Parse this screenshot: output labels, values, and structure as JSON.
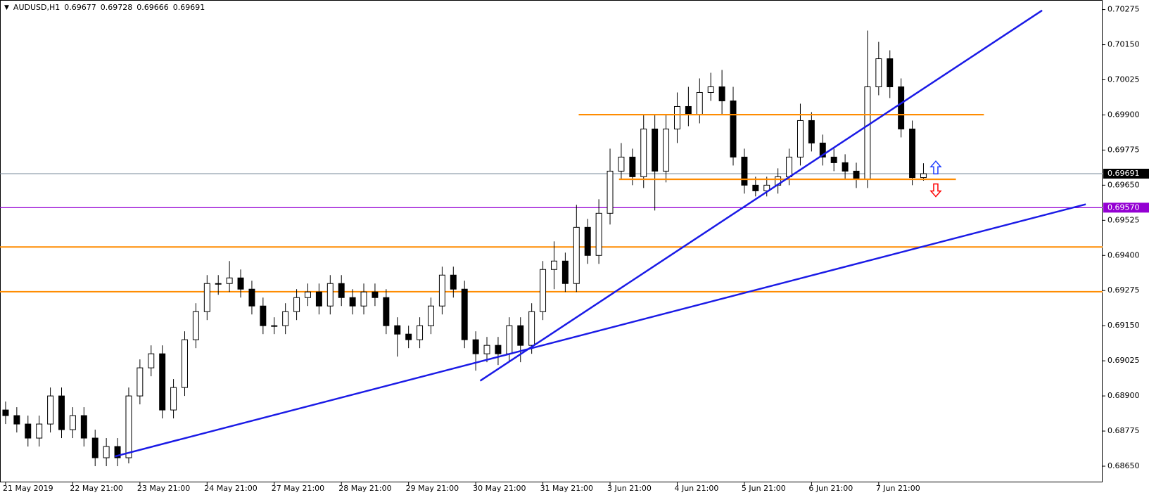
{
  "chart_data": {
    "type": "candlestick",
    "title": "AUDUSD,H1",
    "up_color": "#ffffff",
    "down_color": "#000000",
    "outline_color": "#000000",
    "open": [
      0.6885,
      0.6883,
      0.688,
      0.6875,
      0.688,
      0.689,
      0.6878,
      0.6883,
      0.6875,
      0.6868,
      0.6872,
      0.6868,
      0.689,
      0.69,
      0.6905,
      0.6885,
      0.6893,
      0.691,
      0.692,
      0.693,
      0.693,
      0.6932,
      0.6928,
      0.6922,
      0.6915,
      0.6915,
      0.692,
      0.6925,
      0.6927,
      0.6922,
      0.693,
      0.6925,
      0.6922,
      0.6927,
      0.6925,
      0.6915,
      0.6912,
      0.691,
      0.6915,
      0.6922,
      0.6933,
      0.6928,
      0.691,
      0.6905,
      0.6908,
      0.6905,
      0.6915,
      0.6908,
      0.692,
      0.6935,
      0.6938,
      0.693,
      0.695,
      0.694,
      0.6955,
      0.697,
      0.6975,
      0.6968,
      0.6985,
      0.697,
      0.6985,
      0.6993,
      0.699,
      0.6998,
      0.7,
      0.6995,
      0.6975,
      0.6965,
      0.6963,
      0.6965,
      0.6968,
      0.6975,
      0.6988,
      0.698,
      0.6975,
      0.6973,
      0.697,
      0.6967,
      0.7,
      0.701,
      0.7,
      0.6985,
      0.69677
    ],
    "high": [
      0.6888,
      0.6886,
      0.6883,
      0.6883,
      0.6893,
      0.6893,
      0.6886,
      0.6886,
      0.6878,
      0.6875,
      0.6875,
      0.6893,
      0.6903,
      0.6908,
      0.6908,
      0.6896,
      0.6913,
      0.6923,
      0.6933,
      0.6933,
      0.6938,
      0.6935,
      0.6931,
      0.6925,
      0.6918,
      0.6923,
      0.6928,
      0.693,
      0.693,
      0.6933,
      0.6933,
      0.6928,
      0.693,
      0.693,
      0.6928,
      0.6918,
      0.6915,
      0.6918,
      0.6925,
      0.6936,
      0.6936,
      0.6931,
      0.6913,
      0.6911,
      0.6911,
      0.6918,
      0.6918,
      0.6923,
      0.6938,
      0.6945,
      0.6941,
      0.6958,
      0.6953,
      0.696,
      0.6978,
      0.698,
      0.6978,
      0.699,
      0.699,
      0.699,
      0.6998,
      0.7,
      0.7003,
      0.7005,
      0.7006,
      0.7,
      0.6978,
      0.6968,
      0.6968,
      0.6971,
      0.6978,
      0.6994,
      0.6991,
      0.6983,
      0.6978,
      0.6976,
      0.6973,
      0.702,
      0.7016,
      0.7013,
      0.7003,
      0.6988,
      0.69728
    ],
    "low": [
      0.688,
      0.6877,
      0.6872,
      0.6872,
      0.6877,
      0.6875,
      0.6875,
      0.6872,
      0.6865,
      0.6865,
      0.6865,
      0.6866,
      0.6887,
      0.6897,
      0.6882,
      0.6882,
      0.689,
      0.6907,
      0.6917,
      0.6926,
      0.6927,
      0.6925,
      0.6919,
      0.6912,
      0.6912,
      0.6912,
      0.6917,
      0.6922,
      0.6919,
      0.6919,
      0.6922,
      0.6919,
      0.6919,
      0.6922,
      0.6912,
      0.6904,
      0.6907,
      0.6907,
      0.6912,
      0.6919,
      0.6925,
      0.6907,
      0.6899,
      0.6902,
      0.6901,
      0.6902,
      0.6902,
      0.6905,
      0.6917,
      0.6928,
      0.6927,
      0.6927,
      0.6937,
      0.6937,
      0.6951,
      0.6967,
      0.6965,
      0.6964,
      0.6956,
      0.6966,
      0.698,
      0.6986,
      0.6987,
      0.6995,
      0.699,
      0.6972,
      0.6962,
      0.6961,
      0.6961,
      0.6962,
      0.6965,
      0.6972,
      0.6977,
      0.6972,
      0.697,
      0.6967,
      0.6964,
      0.6964,
      0.6997,
      0.6996,
      0.6982,
      0.6965,
      0.69666
    ],
    "close": [
      0.6883,
      0.688,
      0.6875,
      0.688,
      0.689,
      0.6878,
      0.6883,
      0.6875,
      0.6868,
      0.6872,
      0.6868,
      0.689,
      0.69,
      0.6905,
      0.6885,
      0.6893,
      0.691,
      0.692,
      0.693,
      0.693,
      0.6932,
      0.6928,
      0.6922,
      0.6915,
      0.6915,
      0.692,
      0.6925,
      0.6927,
      0.6922,
      0.693,
      0.6925,
      0.6922,
      0.6927,
      0.6925,
      0.6915,
      0.6912,
      0.691,
      0.6915,
      0.6922,
      0.6933,
      0.6928,
      0.691,
      0.6905,
      0.6908,
      0.6905,
      0.6915,
      0.6908,
      0.692,
      0.6935,
      0.6938,
      0.693,
      0.695,
      0.694,
      0.6955,
      0.697,
      0.6975,
      0.6968,
      0.6985,
      0.697,
      0.6985,
      0.6993,
      0.699,
      0.6998,
      0.7,
      0.6995,
      0.6975,
      0.6965,
      0.6963,
      0.6965,
      0.6968,
      0.6975,
      0.6988,
      0.698,
      0.6975,
      0.6973,
      0.697,
      0.6967,
      0.7,
      0.701,
      0.7,
      0.6985,
      0.69677,
      0.69691
    ],
    "xlim": [
      -0.5,
      98
    ],
    "xticks": [
      {
        "value": 0,
        "label": "21 May 2019"
      },
      {
        "value": 6,
        "label": "22 May 21:00"
      },
      {
        "value": 12,
        "label": "23 May 21:00"
      },
      {
        "value": 18,
        "label": "24 May 21:00"
      },
      {
        "value": 24,
        "label": "27 May 21:00"
      },
      {
        "value": 30,
        "label": "28 May 21:00"
      },
      {
        "value": 36,
        "label": "29 May 21:00"
      },
      {
        "value": 42,
        "label": "30 May 21:00"
      },
      {
        "value": 48,
        "label": "31 May 21:00"
      },
      {
        "value": 54,
        "label": "3 Jun 21:00"
      },
      {
        "value": 60,
        "label": "4 Jun 21:00"
      },
      {
        "value": 66,
        "label": "5 Jun 21:00"
      },
      {
        "value": 72,
        "label": "6 Jun 21:00"
      },
      {
        "value": 78,
        "label": "7 Jun 21:00"
      }
    ],
    "ylim": [
      0.68595,
      0.70309
    ],
    "yticks": [
      0.70275,
      {
        "value": 0.7015,
        "label": "0.70150"
      },
      0.70025,
      {
        "value": 0.699,
        "label": "0.69900"
      },
      0.69775,
      {
        "value": 0.6965,
        "label": "0.69650"
      },
      0.69525,
      {
        "value": 0.694,
        "label": "0.69400"
      },
      0.69275,
      {
        "value": 0.6915,
        "label": "0.69150"
      },
      0.69025,
      {
        "value": 0.689,
        "label": "0.68900"
      },
      0.68775,
      {
        "value": 0.6865,
        "label": "0.68650"
      }
    ],
    "bid_color": "#778899",
    "levels": [
      {
        "value": 0.6957,
        "label": "0.69570",
        "color": "#9400d3"
      },
      {
        "value": 0.6943,
        "color": "#ff8c00"
      },
      {
        "value": 0.69271,
        "color": "#ff8c00"
      }
    ],
    "segments": [
      {
        "x": [
          51.2,
          87.4
        ],
        "y": [
          0.69901,
          0.69901
        ],
        "color": "#ff8c00"
      },
      {
        "x": [
          54.8,
          84.9
        ],
        "y": [
          0.69671,
          0.69671
        ],
        "color": "#ff8c00"
      },
      {
        "x": [
          9.77,
          96.5
        ],
        "y": [
          0.68685,
          0.69582
        ],
        "color": "#1a1ae6"
      },
      {
        "x": [
          42.4,
          92.6
        ],
        "y": [
          0.68954,
          0.70272
        ],
        "color": "#1a1ae6"
      }
    ],
    "arrows": [
      {
        "x": 83.1,
        "y": 0.69713,
        "direction": "up",
        "color": "#1e3cff"
      },
      {
        "x": 83.1,
        "y": 0.69632,
        "direction": "down",
        "color": "#ff0000"
      }
    ]
  }
}
